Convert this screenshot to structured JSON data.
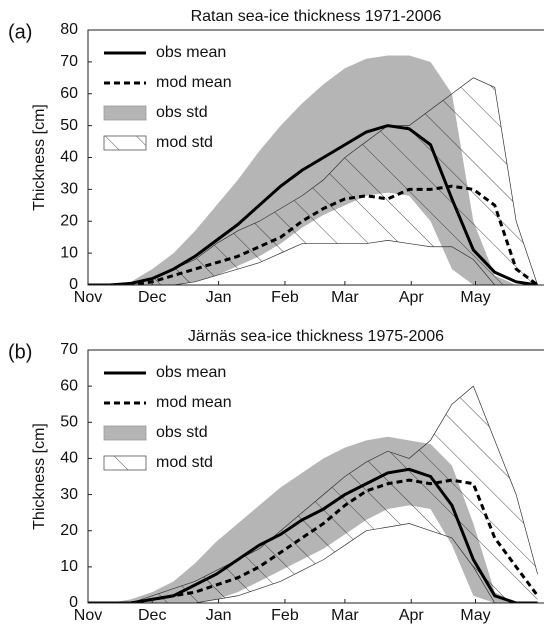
{
  "chart_data": [
    {
      "type": "line",
      "label": "(a)",
      "title": "Ratan sea-ice thickness 1971-2006",
      "ylabel": "Thickness [cm]",
      "x": [
        0,
        10,
        20,
        30,
        40,
        50,
        60,
        70,
        80,
        90,
        100,
        110,
        120,
        130,
        140,
        150,
        160,
        170,
        180,
        190,
        200,
        210
      ],
      "xlim": [
        0,
        213
      ],
      "ylim": [
        0,
        80
      ],
      "xticks": [
        {
          "value": 0,
          "label": "Nov"
        },
        {
          "value": 30,
          "label": "Dec"
        },
        {
          "value": 61,
          "label": "Jan"
        },
        {
          "value": 92,
          "label": "Feb"
        },
        {
          "value": 120,
          "label": "Mar"
        },
        {
          "value": 151,
          "label": "Apr"
        },
        {
          "value": 181,
          "label": "May"
        }
      ],
      "yticks": [
        0,
        10,
        20,
        30,
        40,
        50,
        60,
        70,
        80
      ],
      "legend": "upper left",
      "series": [
        {
          "name": "obs mean",
          "style": "solid",
          "color": "#000000",
          "values": [
            0,
            0,
            0.5,
            2,
            5,
            9,
            14,
            19,
            25,
            31,
            36,
            40,
            44,
            48,
            50,
            49,
            44,
            27,
            11,
            4,
            1,
            0
          ]
        },
        {
          "name": "mod mean",
          "style": "dashed",
          "color": "#000000",
          "values": [
            0,
            0,
            0,
            1,
            3,
            5,
            7,
            9,
            12,
            15,
            20,
            24,
            27,
            28,
            27,
            30,
            30,
            31,
            30,
            25,
            5,
            0
          ]
        },
        {
          "name": "obs std",
          "style": "band",
          "color": "#b5b5b5",
          "upper": [
            0,
            0,
            1,
            5,
            10,
            17,
            25,
            33,
            42,
            50,
            57,
            63,
            68,
            71,
            72,
            72,
            70,
            60,
            20,
            3,
            0,
            0
          ],
          "lower": [
            0,
            0,
            0,
            0,
            0,
            1,
            3,
            6,
            9,
            13,
            18,
            22,
            25,
            28,
            29,
            28,
            20,
            5,
            0,
            0,
            0,
            0
          ]
        },
        {
          "name": "mod std",
          "style": "hatch",
          "color": "#333333",
          "upper": [
            0,
            0,
            0,
            2,
            5,
            8,
            13,
            17,
            20,
            24,
            28,
            33,
            40,
            45,
            50,
            50,
            55,
            60,
            65,
            62,
            20,
            0
          ],
          "lower": [
            0,
            0,
            0,
            0,
            0,
            1,
            3,
            5,
            7,
            10,
            13,
            13,
            13,
            13,
            14,
            13,
            12,
            12,
            8,
            0,
            0,
            0
          ]
        }
      ]
    },
    {
      "type": "line",
      "label": "(b)",
      "title": "Järnäs sea-ice thickness 1975-2006",
      "ylabel": "Thickness [cm]",
      "x": [
        0,
        10,
        20,
        30,
        40,
        50,
        60,
        70,
        80,
        90,
        100,
        110,
        120,
        130,
        140,
        150,
        160,
        170,
        180,
        190,
        200,
        210
      ],
      "xlim": [
        0,
        213
      ],
      "ylim": [
        0,
        70
      ],
      "xticks": [
        {
          "value": 0,
          "label": "Nov"
        },
        {
          "value": 30,
          "label": "Dec"
        },
        {
          "value": 61,
          "label": "Jan"
        },
        {
          "value": 92,
          "label": "Feb"
        },
        {
          "value": 120,
          "label": "Mar"
        },
        {
          "value": 151,
          "label": "Apr"
        },
        {
          "value": 181,
          "label": "May"
        }
      ],
      "yticks": [
        0,
        10,
        20,
        30,
        40,
        50,
        60,
        70
      ],
      "legend": "upper left",
      "series": [
        {
          "name": "obs mean",
          "style": "solid",
          "color": "#000000",
          "values": [
            0,
            0,
            0,
            1,
            2,
            5,
            8,
            12,
            16,
            19,
            23,
            26,
            30,
            33,
            36,
            37,
            35,
            27,
            12,
            2,
            0,
            0
          ]
        },
        {
          "name": "mod mean",
          "style": "dashed",
          "color": "#000000",
          "values": [
            0,
            0,
            0,
            1,
            2,
            3,
            5,
            7,
            10,
            14,
            18,
            22,
            27,
            31,
            33,
            34,
            33,
            34,
            33,
            18,
            10,
            2
          ]
        },
        {
          "name": "obs std",
          "style": "band",
          "color": "#b5b5b5",
          "upper": [
            0,
            0,
            1,
            3,
            6,
            11,
            17,
            22,
            27,
            32,
            36,
            40,
            43,
            45,
            46,
            45,
            44,
            38,
            22,
            3,
            0,
            0
          ],
          "lower": [
            0,
            0,
            0,
            0,
            0,
            0,
            1,
            3,
            6,
            9,
            12,
            15,
            19,
            23,
            26,
            27,
            26,
            16,
            2,
            0,
            0,
            0
          ]
        },
        {
          "name": "mod std",
          "style": "hatch",
          "color": "#333333",
          "upper": [
            0,
            0,
            0,
            2,
            4,
            6,
            9,
            12,
            15,
            20,
            25,
            30,
            35,
            39,
            42,
            40,
            45,
            55,
            60,
            45,
            30,
            8
          ],
          "lower": [
            0,
            0,
            0,
            0,
            0,
            0,
            1,
            2,
            4,
            6,
            9,
            12,
            16,
            20,
            21,
            22,
            20,
            18,
            10,
            0,
            0,
            0
          ]
        }
      ]
    }
  ]
}
